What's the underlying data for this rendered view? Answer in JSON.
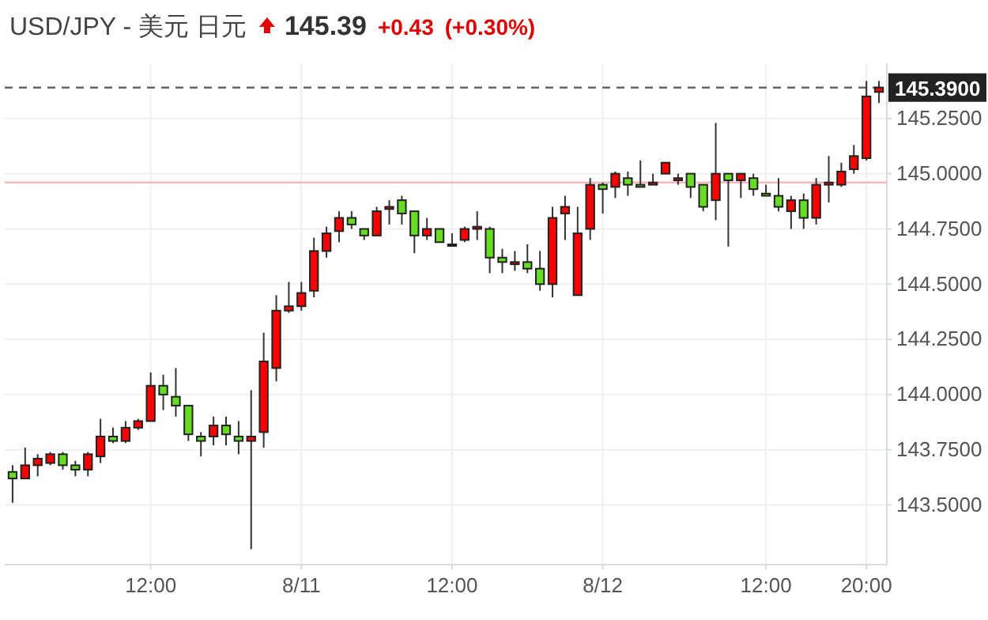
{
  "chart_data": {
    "type": "candlestick",
    "title": "USD/JPY - 美元 日元",
    "annotations": [
      "145.39",
      "+0.43",
      "(+0.30%)"
    ],
    "categories": [
      null,
      null,
      null,
      null,
      null,
      null,
      null,
      null,
      null,
      null,
      null,
      "12:00",
      null,
      null,
      null,
      null,
      null,
      null,
      null,
      null,
      null,
      null,
      null,
      "8/11",
      null,
      null,
      null,
      null,
      null,
      null,
      null,
      null,
      null,
      null,
      null,
      "12:00",
      null,
      null,
      null,
      null,
      null,
      null,
      null,
      null,
      null,
      null,
      null,
      "8/12",
      null,
      null,
      null,
      null,
      null,
      null,
      null,
      null,
      null,
      null,
      null,
      null,
      "12:00",
      null,
      null,
      null,
      null,
      null,
      null,
      null,
      "20:00",
      null
    ],
    "ohlc": [
      [
        143.65,
        143.68,
        143.51,
        143.62
      ],
      [
        143.62,
        143.76,
        143.62,
        143.68
      ],
      [
        143.68,
        143.73,
        143.63,
        143.71
      ],
      [
        143.69,
        143.74,
        143.68,
        143.73
      ],
      [
        143.73,
        143.74,
        143.66,
        143.68
      ],
      [
        143.68,
        143.7,
        143.63,
        143.66
      ],
      [
        143.66,
        143.74,
        143.63,
        143.73
      ],
      [
        143.72,
        143.89,
        143.69,
        143.81
      ],
      [
        143.81,
        143.85,
        143.78,
        143.79
      ],
      [
        143.79,
        143.88,
        143.78,
        143.85
      ],
      [
        143.85,
        143.89,
        143.84,
        143.88
      ],
      [
        143.88,
        144.1,
        143.88,
        144.04
      ],
      [
        144.04,
        144.09,
        143.93,
        144.0
      ],
      [
        143.99,
        144.12,
        143.9,
        143.95
      ],
      [
        143.95,
        143.95,
        143.79,
        143.82
      ],
      [
        143.81,
        143.83,
        143.72,
        143.79
      ],
      [
        143.81,
        143.9,
        143.77,
        143.86
      ],
      [
        143.86,
        143.9,
        143.77,
        143.82
      ],
      [
        143.81,
        143.88,
        143.73,
        143.79
      ],
      [
        143.79,
        144.02,
        143.3,
        143.81
      ],
      [
        143.83,
        144.28,
        143.76,
        144.15
      ],
      [
        144.12,
        144.45,
        144.06,
        144.38
      ],
      [
        144.38,
        144.51,
        144.37,
        144.4
      ],
      [
        144.4,
        144.51,
        144.38,
        144.46
      ],
      [
        144.47,
        144.71,
        144.44,
        144.65
      ],
      [
        144.65,
        144.76,
        144.62,
        144.73
      ],
      [
        144.74,
        144.83,
        144.69,
        144.8
      ],
      [
        144.8,
        144.83,
        144.75,
        144.77
      ],
      [
        144.75,
        144.75,
        144.7,
        144.72
      ],
      [
        144.72,
        144.85,
        144.72,
        144.83
      ],
      [
        144.84,
        144.88,
        144.77,
        144.85
      ],
      [
        144.88,
        144.9,
        144.77,
        144.82
      ],
      [
        144.83,
        144.83,
        144.64,
        144.72
      ],
      [
        144.72,
        144.8,
        144.7,
        144.75
      ],
      [
        144.75,
        144.75,
        144.69,
        144.69
      ],
      [
        144.68,
        144.73,
        144.67,
        144.68
      ],
      [
        144.7,
        144.76,
        144.69,
        144.75
      ],
      [
        144.75,
        144.83,
        144.7,
        144.76
      ],
      [
        144.75,
        144.76,
        144.55,
        144.62
      ],
      [
        144.62,
        144.66,
        144.55,
        144.6
      ],
      [
        144.59,
        144.65,
        144.56,
        144.6
      ],
      [
        144.6,
        144.68,
        144.55,
        144.57
      ],
      [
        144.57,
        144.65,
        144.47,
        144.5
      ],
      [
        144.5,
        144.85,
        144.44,
        144.8
      ],
      [
        144.82,
        144.9,
        144.7,
        144.85
      ],
      [
        144.45,
        144.85,
        144.45,
        144.73
      ],
      [
        144.75,
        144.98,
        144.7,
        144.95
      ],
      [
        144.95,
        144.96,
        144.82,
        144.93
      ],
      [
        144.94,
        145.01,
        144.89,
        145.0
      ],
      [
        144.98,
        145.01,
        144.9,
        144.95
      ],
      [
        144.95,
        145.06,
        144.94,
        144.94
      ],
      [
        144.95,
        145.0,
        144.95,
        144.96
      ],
      [
        145.0,
        145.05,
        145.0,
        145.05
      ],
      [
        144.97,
        145.0,
        144.95,
        144.98
      ],
      [
        145.0,
        145.0,
        144.89,
        144.94
      ],
      [
        144.95,
        144.95,
        144.83,
        144.85
      ],
      [
        144.88,
        145.23,
        144.79,
        145.0
      ],
      [
        145.0,
        145.0,
        144.67,
        144.97
      ],
      [
        144.97,
        145.0,
        144.89,
        145.0
      ],
      [
        144.98,
        145.0,
        144.9,
        144.93
      ],
      [
        144.91,
        144.95,
        144.9,
        144.9
      ],
      [
        144.9,
        144.98,
        144.83,
        144.85
      ],
      [
        144.83,
        144.9,
        144.75,
        144.88
      ],
      [
        144.88,
        144.91,
        144.75,
        144.8
      ],
      [
        144.8,
        144.98,
        144.77,
        144.95
      ],
      [
        144.95,
        145.08,
        144.87,
        144.96
      ],
      [
        144.95,
        145.05,
        144.94,
        145.01
      ],
      [
        145.02,
        145.13,
        145.0,
        145.08
      ],
      [
        145.07,
        145.42,
        145.06,
        145.35
      ],
      [
        145.37,
        145.42,
        145.32,
        145.39
      ]
    ],
    "colors": [
      "#66dd22",
      "#ff0000",
      "#ff0000",
      "#ff0000",
      "#66dd22",
      "#66dd22",
      "#ff0000",
      "#ff0000",
      "#66dd22",
      "#ff0000",
      "#ff0000",
      "#ff0000",
      "#66dd22",
      "#66dd22",
      "#66dd22",
      "#66dd22",
      "#ff0000",
      "#66dd22",
      "#66dd22",
      "#ff0000",
      "#ff0000",
      "#ff0000",
      "#ff0000",
      "#ff0000",
      "#ff0000",
      "#ff0000",
      "#ff0000",
      "#66dd22",
      "#66dd22",
      "#ff0000",
      "#ff0000",
      "#66dd22",
      "#66dd22",
      "#ff0000",
      "#66dd22",
      "#333333",
      "#ff0000",
      "#ff0000",
      "#66dd22",
      "#66dd22",
      "#ff0000",
      "#66dd22",
      "#66dd22",
      "#ff0000",
      "#ff0000",
      "#ff0000",
      "#ff0000",
      "#66dd22",
      "#ff0000",
      "#66dd22",
      "#66dd22",
      "#ff0000",
      "#ff0000",
      "#ff0000",
      "#66dd22",
      "#66dd22",
      "#ff0000",
      "#66dd22",
      "#ff0000",
      "#66dd22",
      "#66dd22",
      "#66dd22",
      "#ff0000",
      "#66dd22",
      "#ff0000",
      "#ff0000",
      "#ff0000",
      "#ff0000",
      "#ff0000",
      "#ff0000"
    ],
    "ylim": [
      143.23,
      145.5
    ],
    "yticks": [
      {
        "value": 143.5,
        "label": "143.5000"
      },
      {
        "value": 143.75,
        "label": "143.7500"
      },
      {
        "value": 144,
        "label": "144.0000"
      },
      {
        "value": 144.25,
        "label": "144.2500"
      },
      {
        "value": 144.5,
        "label": "144.5000"
      },
      {
        "value": 144.75,
        "label": "144.7500"
      },
      {
        "value": 145,
        "label": "145.0000"
      },
      {
        "value": 145.25,
        "label": "145.2500"
      }
    ],
    "ref_lines": [
      {
        "axis": "y",
        "value": 145.39,
        "label": "145.3900",
        "color": "#666666",
        "line_style": "dashed"
      },
      {
        "axis": "y",
        "value": 144.96,
        "color": "#f4b8b8",
        "line_style": "solid"
      }
    ],
    "grid": true
  }
}
